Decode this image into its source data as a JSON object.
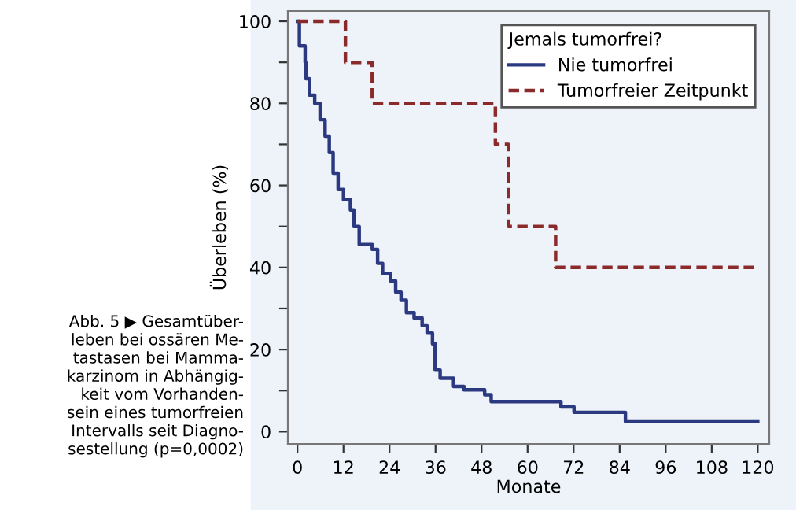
{
  "chart_data": {
    "type": "step",
    "xlabel": "Monate",
    "ylabel": "Überleben (%)",
    "legend_title": "Jemals tumorfrei?",
    "annotations": [
      "Abb. 5 ▶ Gesamtüber-\nleben bei ossären Me-\ntastasen bei Mamma-\nkarzinom in Abhängig-\nkeit vom Vorhanden-\nsein eines tumorfreien\nIntervalls seit Diagno-\nsestellung (p=0,0002)"
    ],
    "series": [
      {
        "name": "Nie tumorfrei",
        "color": "#2b3a80",
        "line_style": "solid",
        "x": [
          0,
          0.5,
          2,
          2.2,
          3.1,
          4.5,
          5.9,
          7.2,
          8.3,
          9.3,
          10.6,
          12,
          13.8,
          14.7,
          16.1,
          19.5,
          20.9,
          22.2,
          24.3,
          25.6,
          27,
          28.4,
          30.4,
          32.5,
          33.8,
          35.2,
          35.9,
          37.2,
          40.7,
          43.4,
          48.8,
          50.5,
          68.7,
          72.1,
          85.5,
          120
        ],
        "values": [
          100,
          94,
          90,
          86,
          82,
          80,
          76,
          72,
          68,
          63,
          59,
          56.5,
          54,
          50,
          45.6,
          44.4,
          41,
          38.6,
          36.7,
          34,
          32,
          29,
          27.7,
          25.8,
          24,
          21.4,
          15,
          13,
          11,
          10.2,
          9,
          7.3,
          6,
          4.7,
          2.4,
          2.4
        ]
      },
      {
        "name": "Tumorfreier Zeitpunkt",
        "color": "#8b2a2a",
        "line_style": "dashed",
        "x": [
          0,
          12.5,
          19.5,
          51.6,
          55,
          67.3,
          120
        ],
        "values": [
          100,
          90,
          80,
          70,
          50,
          40,
          40
        ]
      }
    ],
    "xlim": [
      -2.5,
      123
    ],
    "ylim": [
      -3,
      102.5
    ],
    "xticks": [
      0,
      12,
      24,
      36,
      48,
      60,
      72,
      84,
      96,
      108,
      120
    ],
    "yticks": [
      0,
      {
        "value": 10,
        "label": null
      },
      20,
      {
        "value": 30,
        "label": null
      },
      40,
      {
        "value": 50,
        "label": null
      },
      60,
      {
        "value": 70,
        "label": null
      },
      80,
      {
        "value": 90,
        "label": null
      },
      100
    ],
    "grid": false,
    "legend": "top right",
    "marker": "none"
  }
}
